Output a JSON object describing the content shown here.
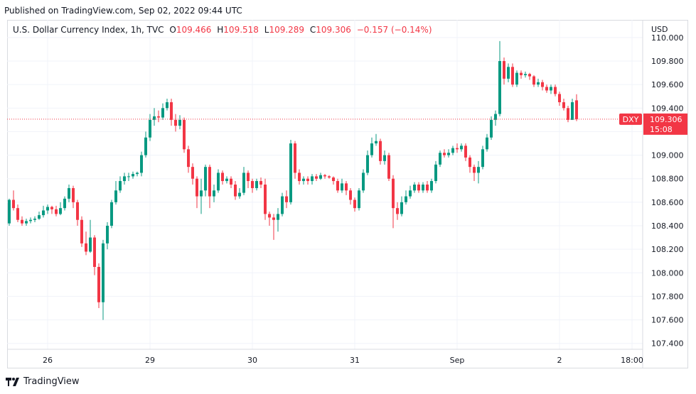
{
  "header": {
    "published": "Published on TradingView.com, Sep 02, 2022 09:44 UTC"
  },
  "legend": {
    "symbol": "U.S. Dollar Currency Index, 1h, TVC",
    "o_label": "O",
    "o_value": "109.466",
    "h_label": "H",
    "h_value": "109.518",
    "l_label": "L",
    "l_value": "109.289",
    "c_label": "C",
    "c_value": "109.306",
    "change": "−0.157 (−0.14%)"
  },
  "price_badge": {
    "ticker": "DXY",
    "price": "109.306",
    "countdown": "15:08"
  },
  "footer": {
    "brand": "TradingView"
  },
  "colors": {
    "up": "#089981",
    "down": "#f23645",
    "grid": "#f0f3fa",
    "badge": "#f23645"
  },
  "chart_data": {
    "type": "candlestick",
    "currency": "USD",
    "ylim": [
      107.35,
      110.15
    ],
    "y_ticks": [
      107.4,
      107.6,
      107.8,
      108.0,
      108.2,
      108.4,
      108.6,
      108.8,
      109.0,
      109.2,
      109.4,
      109.6,
      109.8,
      110.0
    ],
    "y_tick_labels": [
      "107.400",
      "107.600",
      "107.800",
      "108.000",
      "108.200",
      "108.400",
      "108.600",
      "108.800",
      "109.000",
      "109.200",
      "109.400",
      "109.600",
      "109.800",
      "110.000"
    ],
    "x_ticks": [
      {
        "label": "26",
        "i": 9
      },
      {
        "label": "29",
        "i": 33
      },
      {
        "label": "30",
        "i": 57
      },
      {
        "label": "31",
        "i": 81
      },
      {
        "label": "Sep",
        "i": 105
      },
      {
        "label": "2",
        "i": 129
      },
      {
        "label": "18:00",
        "i": 146
      }
    ],
    "last_price": 109.306,
    "candles": [
      [
        108.42,
        108.62,
        108.63,
        108.4
      ],
      [
        108.62,
        108.55,
        108.7,
        108.53
      ],
      [
        108.55,
        108.45,
        108.58,
        108.43
      ],
      [
        108.45,
        108.42,
        108.48,
        108.4
      ],
      [
        108.42,
        108.44,
        108.46,
        108.4
      ],
      [
        108.44,
        108.45,
        108.47,
        108.42
      ],
      [
        108.45,
        108.46,
        108.48,
        108.43
      ],
      [
        108.46,
        108.49,
        108.52,
        108.45
      ],
      [
        108.49,
        108.53,
        108.57,
        108.47
      ],
      [
        108.53,
        108.56,
        108.58,
        108.5
      ],
      [
        108.56,
        108.54,
        108.57,
        108.5
      ],
      [
        108.54,
        108.5,
        108.57,
        108.48
      ],
      [
        108.5,
        108.55,
        108.6,
        108.49
      ],
      [
        108.55,
        108.63,
        108.65,
        108.53
      ],
      [
        108.63,
        108.72,
        108.75,
        108.6
      ],
      [
        108.72,
        108.6,
        108.74,
        108.55
      ],
      [
        108.6,
        108.45,
        108.62,
        108.4
      ],
      [
        108.45,
        108.25,
        108.48,
        108.22
      ],
      [
        108.25,
        108.18,
        108.35,
        108.15
      ],
      [
        108.18,
        108.3,
        108.45,
        108.17
      ],
      [
        108.3,
        108.05,
        108.32,
        107.98
      ],
      [
        108.05,
        107.75,
        108.08,
        107.7
      ],
      [
        107.75,
        108.25,
        108.28,
        107.6
      ],
      [
        108.25,
        108.4,
        108.43,
        108.2
      ],
      [
        108.4,
        108.6,
        108.62,
        108.38
      ],
      [
        108.6,
        108.7,
        108.78,
        108.58
      ],
      [
        108.7,
        108.78,
        108.82,
        108.68
      ],
      [
        108.78,
        108.82,
        108.85,
        108.75
      ],
      [
        108.82,
        108.82,
        108.85,
        108.78
      ],
      [
        108.82,
        108.84,
        108.86,
        108.8
      ],
      [
        108.84,
        108.85,
        108.86,
        108.82
      ],
      [
        108.85,
        109.0,
        109.03,
        108.82
      ],
      [
        109.0,
        109.15,
        109.2,
        108.98
      ],
      [
        109.15,
        109.3,
        109.35,
        109.12
      ],
      [
        109.3,
        109.33,
        109.4,
        109.25
      ],
      [
        109.33,
        109.32,
        109.38,
        109.28
      ],
      [
        109.32,
        109.4,
        109.44,
        109.3
      ],
      [
        109.4,
        109.45,
        109.48,
        109.38
      ],
      [
        109.45,
        109.3,
        109.48,
        109.25
      ],
      [
        109.3,
        109.25,
        109.35,
        109.2
      ],
      [
        109.25,
        109.3,
        109.34,
        109.22
      ],
      [
        109.3,
        109.05,
        109.32,
        109.02
      ],
      [
        109.05,
        108.9,
        109.08,
        108.85
      ],
      [
        108.9,
        108.8,
        108.93,
        108.75
      ],
      [
        108.8,
        108.65,
        108.82,
        108.55
      ],
      [
        108.65,
        108.7,
        108.8,
        108.5
      ],
      [
        108.7,
        108.9,
        108.92,
        108.65
      ],
      [
        108.9,
        108.65,
        108.92,
        108.55
      ],
      [
        108.65,
        108.7,
        108.75,
        108.6
      ],
      [
        108.7,
        108.85,
        108.88,
        108.68
      ],
      [
        108.85,
        108.78,
        108.87,
        108.75
      ],
      [
        108.78,
        108.8,
        108.82,
        108.76
      ],
      [
        108.8,
        108.75,
        108.82,
        108.72
      ],
      [
        108.75,
        108.65,
        108.78,
        108.62
      ],
      [
        108.65,
        108.68,
        108.72,
        108.63
      ],
      [
        108.68,
        108.85,
        108.9,
        108.66
      ],
      [
        108.85,
        108.78,
        108.87,
        108.72
      ],
      [
        108.78,
        108.72,
        108.8,
        108.68
      ],
      [
        108.72,
        108.78,
        108.8,
        108.7
      ],
      [
        108.78,
        108.75,
        108.81,
        108.72
      ],
      [
        108.75,
        108.5,
        108.8,
        108.45
      ],
      [
        108.5,
        108.47,
        108.52,
        108.4
      ],
      [
        108.47,
        108.45,
        108.5,
        108.28
      ],
      [
        108.45,
        108.5,
        108.55,
        108.35
      ],
      [
        108.5,
        108.65,
        108.68,
        108.48
      ],
      [
        108.65,
        108.6,
        108.7,
        108.55
      ],
      [
        108.6,
        109.1,
        109.13,
        108.58
      ],
      [
        109.1,
        108.85,
        109.12,
        108.8
      ],
      [
        108.85,
        108.78,
        108.88,
        108.75
      ],
      [
        108.78,
        108.8,
        108.82,
        108.75
      ],
      [
        108.8,
        108.78,
        108.82,
        108.75
      ],
      [
        108.78,
        108.82,
        108.84,
        108.75
      ],
      [
        108.82,
        108.8,
        108.84,
        108.78
      ],
      [
        108.8,
        108.83,
        108.85,
        108.79
      ],
      [
        108.83,
        108.82,
        108.84,
        108.8
      ],
      [
        108.82,
        108.81,
        108.83,
        108.8
      ],
      [
        108.81,
        108.78,
        108.82,
        108.75
      ],
      [
        108.78,
        108.7,
        108.8,
        108.68
      ],
      [
        108.7,
        108.76,
        108.8,
        108.68
      ],
      [
        108.76,
        108.7,
        108.78,
        108.66
      ],
      [
        108.7,
        108.62,
        108.72,
        108.58
      ],
      [
        108.62,
        108.55,
        108.64,
        108.52
      ],
      [
        108.55,
        108.7,
        108.72,
        108.53
      ],
      [
        108.7,
        108.85,
        108.88,
        108.68
      ],
      [
        108.85,
        109.0,
        109.04,
        108.83
      ],
      [
        109.0,
        109.1,
        109.15,
        108.98
      ],
      [
        109.1,
        109.12,
        109.18,
        109.08
      ],
      [
        109.12,
        108.95,
        109.14,
        108.92
      ],
      [
        108.95,
        109.0,
        109.04,
        108.92
      ],
      [
        109.0,
        108.8,
        109.02,
        108.78
      ],
      [
        108.8,
        108.55,
        108.83,
        108.38
      ],
      [
        108.55,
        108.5,
        108.6,
        108.45
      ],
      [
        108.5,
        108.6,
        108.65,
        108.48
      ],
      [
        108.6,
        108.65,
        108.7,
        108.58
      ],
      [
        108.65,
        108.7,
        108.74,
        108.63
      ],
      [
        108.7,
        108.75,
        108.77,
        108.68
      ],
      [
        108.75,
        108.7,
        108.77,
        108.68
      ],
      [
        108.7,
        108.75,
        108.77,
        108.68
      ],
      [
        108.75,
        108.7,
        108.78,
        108.68
      ],
      [
        108.7,
        108.78,
        108.8,
        108.68
      ],
      [
        108.78,
        108.92,
        108.95,
        108.76
      ],
      [
        108.92,
        109.02,
        109.04,
        108.9
      ],
      [
        109.02,
        109.0,
        109.05,
        108.98
      ],
      [
        109.0,
        109.02,
        109.05,
        108.98
      ],
      [
        109.02,
        109.06,
        109.08,
        109.0
      ],
      [
        109.06,
        109.05,
        109.1,
        109.02
      ],
      [
        109.05,
        109.08,
        109.1,
        109.03
      ],
      [
        109.08,
        108.98,
        109.1,
        108.95
      ],
      [
        108.98,
        108.9,
        109.0,
        108.85
      ],
      [
        108.9,
        108.85,
        108.92,
        108.78
      ],
      [
        108.85,
        108.9,
        108.95,
        108.76
      ],
      [
        108.9,
        109.05,
        109.08,
        108.88
      ],
      [
        109.05,
        109.15,
        109.18,
        109.03
      ],
      [
        109.15,
        109.3,
        109.33,
        109.13
      ],
      [
        109.3,
        109.35,
        109.38,
        109.25
      ],
      [
        109.35,
        109.8,
        109.97,
        109.33
      ],
      [
        109.8,
        109.65,
        109.83,
        109.6
      ],
      [
        109.65,
        109.75,
        109.78,
        109.62
      ],
      [
        109.75,
        109.6,
        109.78,
        109.58
      ],
      [
        109.6,
        109.7,
        109.72,
        109.58
      ],
      [
        109.7,
        109.68,
        109.72,
        109.65
      ],
      [
        109.68,
        109.69,
        109.71,
        109.66
      ],
      [
        109.69,
        109.67,
        109.7,
        109.64
      ],
      [
        109.67,
        109.6,
        109.68,
        109.58
      ],
      [
        109.6,
        109.62,
        109.65,
        109.58
      ],
      [
        109.62,
        109.58,
        109.64,
        109.55
      ],
      [
        109.58,
        109.55,
        109.6,
        109.53
      ],
      [
        109.55,
        109.58,
        109.6,
        109.52
      ],
      [
        109.58,
        109.52,
        109.6,
        109.5
      ],
      [
        109.52,
        109.45,
        109.54,
        109.42
      ],
      [
        109.45,
        109.4,
        109.48,
        109.38
      ],
      [
        109.4,
        109.3,
        109.42,
        109.28
      ],
      [
        109.3,
        109.45,
        109.48,
        109.3
      ],
      [
        109.466,
        109.306,
        109.518,
        109.289
      ]
    ]
  }
}
